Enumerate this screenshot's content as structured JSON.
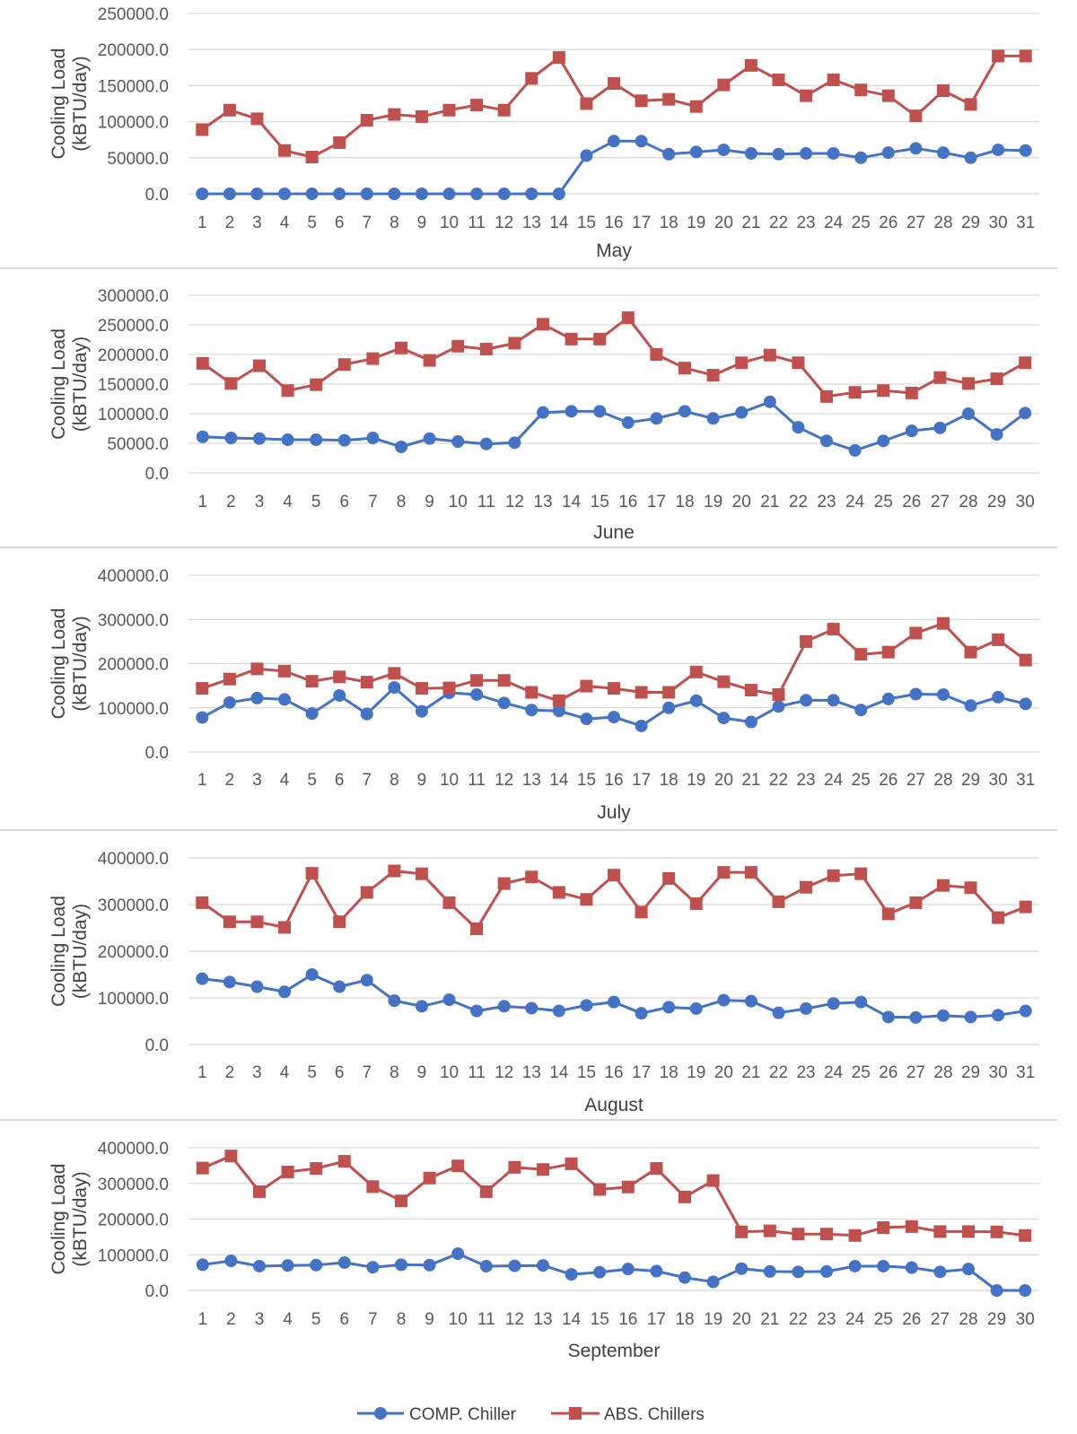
{
  "colors": {
    "comp": "#4472C4",
    "abs": "#C0504D",
    "grid": "#D9D9D9",
    "separator": "#D9D9D9",
    "axis_text": "#595959"
  },
  "legend": {
    "placement": "bottom-center",
    "items": [
      {
        "label": "COMP. Chiller",
        "marker": "circle",
        "color": "#4472C4"
      },
      {
        "label": "ABS. Chillers",
        "marker": "square",
        "color": "#C0504D"
      }
    ]
  },
  "chart_data": [
    {
      "type": "line",
      "xlabel": "May",
      "ylabel": "Cooling Load (kBTU/day)",
      "ylim": [
        0,
        250000
      ],
      "y_ticks": [
        "0.0",
        "50000.0",
        "100000.0",
        "150000.0",
        "200000.0",
        "250000.0"
      ],
      "grid": true,
      "x": [
        1,
        2,
        3,
        4,
        5,
        6,
        7,
        8,
        9,
        10,
        11,
        12,
        13,
        14,
        15,
        16,
        17,
        18,
        19,
        20,
        21,
        22,
        23,
        24,
        25,
        26,
        27,
        28,
        29,
        30,
        31
      ],
      "series": [
        {
          "name": "COMP. Chiller",
          "values": [
            0,
            0,
            0,
            0,
            0,
            0,
            0,
            0,
            0,
            0,
            0,
            0,
            0,
            0,
            53000,
            73000,
            73000,
            55000,
            58000,
            61000,
            56000,
            55000,
            56000,
            56000,
            50000,
            57000,
            63000,
            57000,
            50000,
            61000,
            60000
          ]
        },
        {
          "name": "ABS. Chillers",
          "values": [
            89000,
            116000,
            104000,
            60000,
            51000,
            71000,
            102000,
            110000,
            107000,
            116000,
            123000,
            116000,
            160000,
            189000,
            125000,
            153000,
            129000,
            131000,
            121000,
            151000,
            178000,
            158000,
            136000,
            158000,
            144000,
            136000,
            108000,
            143000,
            124000,
            191000,
            191000
          ]
        }
      ]
    },
    {
      "type": "line",
      "xlabel": "June",
      "ylabel": "Cooling Load (kBTU/day)",
      "ylim": [
        0,
        300000
      ],
      "y_ticks": [
        "0.0",
        "50000.0",
        "100000.0",
        "150000.0",
        "200000.0",
        "250000.0",
        "300000.0"
      ],
      "grid": true,
      "x": [
        1,
        2,
        3,
        4,
        5,
        6,
        7,
        8,
        9,
        10,
        11,
        12,
        13,
        14,
        15,
        16,
        17,
        18,
        19,
        20,
        21,
        22,
        23,
        24,
        25,
        26,
        27,
        28,
        29,
        30
      ],
      "series": [
        {
          "name": "COMP. Chiller",
          "values": [
            61000,
            59000,
            58000,
            56000,
            56000,
            55000,
            59000,
            44000,
            58000,
            53000,
            49000,
            51000,
            102000,
            104000,
            104000,
            85000,
            92000,
            104000,
            92000,
            102000,
            120000,
            77000,
            54000,
            38000,
            54000,
            71000,
            76000,
            100000,
            65000,
            101000
          ]
        },
        {
          "name": "ABS. Chillers",
          "values": [
            185000,
            151000,
            181000,
            139000,
            149000,
            183000,
            193000,
            211000,
            190000,
            214000,
            209000,
            219000,
            251000,
            226000,
            226000,
            262000,
            200000,
            177000,
            165000,
            186000,
            199000,
            186000,
            129000,
            136000,
            139000,
            135000,
            161000,
            151000,
            159000,
            186000
          ]
        }
      ]
    },
    {
      "type": "line",
      "xlabel": "July",
      "ylabel": "Cooling Load (kBTU/day)",
      "ylim": [
        0,
        400000
      ],
      "y_ticks": [
        "0.0",
        "100000.0",
        "200000.0",
        "300000.0",
        "400000.0"
      ],
      "grid": true,
      "x": [
        1,
        2,
        3,
        4,
        5,
        6,
        7,
        8,
        9,
        10,
        11,
        12,
        13,
        14,
        15,
        16,
        17,
        18,
        19,
        20,
        21,
        22,
        23,
        24,
        25,
        26,
        27,
        28,
        29,
        30,
        31
      ],
      "series": [
        {
          "name": "COMP. Chiller",
          "values": [
            78000,
            112000,
            122000,
            119000,
            87000,
            128000,
            86000,
            146000,
            92000,
            134000,
            130000,
            111000,
            95000,
            93000,
            75000,
            79000,
            59000,
            100000,
            116000,
            77000,
            68000,
            103000,
            117000,
            117000,
            95000,
            120000,
            131000,
            130000,
            105000,
            124000,
            109000
          ]
        },
        {
          "name": "ABS. Chillers",
          "values": [
            144000,
            165000,
            188000,
            183000,
            160000,
            170000,
            158000,
            178000,
            144000,
            145000,
            162000,
            162000,
            135000,
            116000,
            149000,
            144000,
            135000,
            135000,
            181000,
            159000,
            140000,
            130000,
            250000,
            278000,
            221000,
            226000,
            269000,
            291000,
            226000,
            254000,
            208000
          ]
        }
      ]
    },
    {
      "type": "line",
      "xlabel": "August",
      "ylabel": "Cooling Load (kBTU/day)",
      "ylim": [
        0,
        400000
      ],
      "y_ticks": [
        "0.0",
        "100000.0",
        "200000.0",
        "300000.0",
        "400000.0"
      ],
      "grid": true,
      "x": [
        1,
        2,
        3,
        4,
        5,
        6,
        7,
        8,
        9,
        10,
        11,
        12,
        13,
        14,
        15,
        16,
        17,
        18,
        19,
        20,
        21,
        22,
        23,
        24,
        25,
        26,
        27,
        28,
        29,
        30,
        31
      ],
      "series": [
        {
          "name": "COMP. Chiller",
          "values": [
            141000,
            134000,
            124000,
            113000,
            150000,
            124000,
            138000,
            94000,
            82000,
            96000,
            72000,
            82000,
            78000,
            72000,
            84000,
            91000,
            67000,
            80000,
            77000,
            95000,
            93000,
            68000,
            77000,
            88000,
            91000,
            59000,
            58000,
            62000,
            59000,
            63000,
            72000
          ]
        },
        {
          "name": "ABS. Chillers",
          "values": [
            304000,
            263000,
            263000,
            251000,
            367000,
            263000,
            326000,
            372000,
            366000,
            304000,
            248000,
            345000,
            359000,
            326000,
            311000,
            363000,
            284000,
            356000,
            302000,
            369000,
            369000,
            306000,
            337000,
            362000,
            366000,
            280000,
            304000,
            341000,
            336000,
            272000,
            295000
          ]
        }
      ]
    },
    {
      "type": "line",
      "xlabel": "September",
      "ylabel": "Cooling Load (kBTU/day)",
      "ylim": [
        0,
        400000
      ],
      "y_ticks": [
        "0.0",
        "100000.0",
        "200000.0",
        "300000.0",
        "400000.0"
      ],
      "grid": true,
      "x": [
        1,
        2,
        3,
        4,
        5,
        6,
        7,
        8,
        9,
        10,
        11,
        12,
        13,
        14,
        15,
        16,
        17,
        18,
        19,
        20,
        21,
        22,
        23,
        24,
        25,
        26,
        27,
        28,
        29,
        30
      ],
      "series": [
        {
          "name": "COMP. Chiller",
          "values": [
            72000,
            83000,
            68000,
            70000,
            71000,
            78000,
            65000,
            72000,
            71000,
            103000,
            68000,
            69000,
            70000,
            45000,
            51000,
            60000,
            54000,
            36000,
            24000,
            61000,
            53000,
            52000,
            53000,
            68000,
            68000,
            64000,
            52000,
            60000,
            0,
            0
          ]
        },
        {
          "name": "ABS. Chillers",
          "values": [
            343000,
            377000,
            277000,
            332000,
            342000,
            362000,
            291000,
            251000,
            315000,
            349000,
            277000,
            345000,
            339000,
            355000,
            283000,
            290000,
            342000,
            262000,
            308000,
            164000,
            167000,
            158000,
            158000,
            154000,
            176000,
            179000,
            165000,
            165000,
            164000,
            154000
          ]
        }
      ]
    }
  ]
}
